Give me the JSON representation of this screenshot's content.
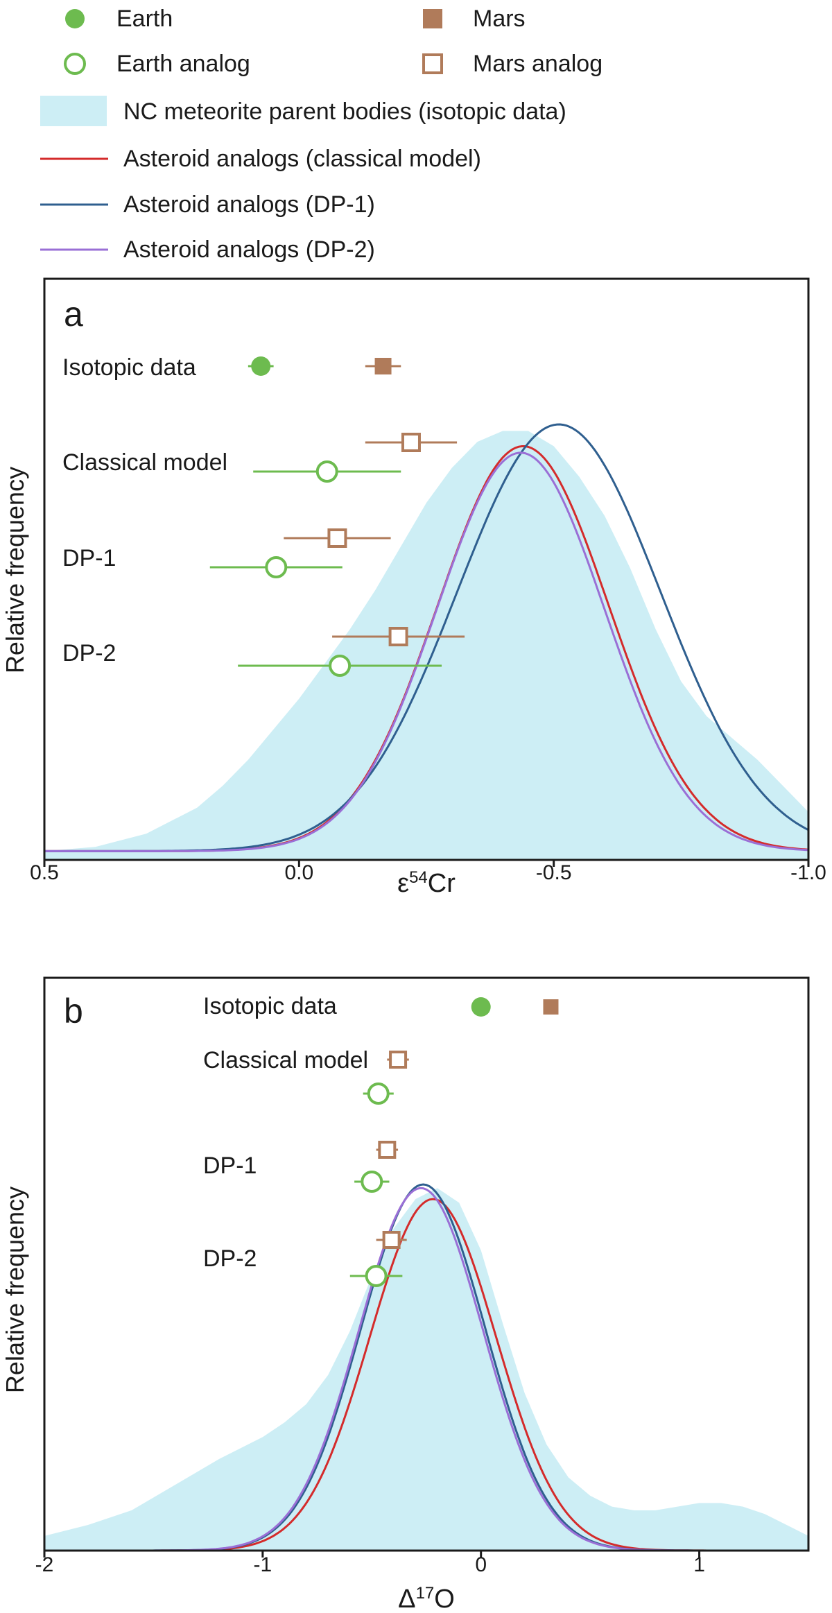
{
  "legend": {
    "items": [
      {
        "key": "earth",
        "label": "Earth",
        "symbol": "filled-circle",
        "color": "#6dbb4f"
      },
      {
        "key": "mars",
        "label": "Mars",
        "symbol": "filled-square",
        "color": "#b07b5a"
      },
      {
        "key": "earth_analog",
        "label": "Earth analog",
        "symbol": "open-circle",
        "color": "#6dbb4f"
      },
      {
        "key": "mars_analog",
        "label": "Mars analog",
        "symbol": "open-square",
        "color": "#b07b5a"
      },
      {
        "key": "nc",
        "label": "NC meteorite parent bodies (isotopic data)",
        "symbol": "filled-rect",
        "color": "#cdeef5"
      },
      {
        "key": "classical",
        "label": "Asteroid analogs (classical model)",
        "symbol": "line",
        "color": "#d42b2b"
      },
      {
        "key": "dp1",
        "label": "Asteroid analogs (DP-1)",
        "symbol": "line",
        "color": "#2f5f8f"
      },
      {
        "key": "dp2",
        "label": "Asteroid analogs (DP-2)",
        "symbol": "line",
        "color": "#9a6fd6"
      }
    ]
  },
  "chart_data": [
    {
      "panel": "a",
      "type": "area",
      "xlabel_base": "ε",
      "xlabel_sup": "54",
      "xlabel_tail": "Cr",
      "ylabel": "Relative frequency",
      "xlim": [
        0.5,
        -1.0
      ],
      "ylim": [
        0,
        1.0
      ],
      "x_ticks": [
        0.5,
        0.0,
        -0.5,
        -1.0
      ],
      "x_tick_labels": [
        "0.5",
        "0.0",
        "-0.5",
        "-1.0"
      ],
      "nc_density": {
        "x": [
          0.5,
          0.4,
          0.3,
          0.2,
          0.15,
          0.1,
          0.05,
          0.0,
          -0.05,
          -0.1,
          -0.15,
          -0.2,
          -0.25,
          -0.3,
          -0.35,
          -0.4,
          -0.45,
          -0.5,
          -0.55,
          -0.6,
          -0.65,
          -0.7,
          -0.75,
          -0.8,
          -0.85,
          -0.9,
          -0.95,
          -1.0
        ],
        "y": [
          0.02,
          0.03,
          0.06,
          0.12,
          0.17,
          0.23,
          0.3,
          0.37,
          0.45,
          0.53,
          0.62,
          0.72,
          0.82,
          0.9,
          0.96,
          0.985,
          0.985,
          0.95,
          0.88,
          0.79,
          0.67,
          0.53,
          0.41,
          0.33,
          0.28,
          0.23,
          0.17,
          0.11
        ]
      },
      "curves": [
        {
          "name": "Asteroid analogs (classical model)",
          "color": "#d42b2b",
          "mu": -0.44,
          "sigma": 0.168,
          "amp": 0.95,
          "base": 0.02
        },
        {
          "name": "Asteroid analogs (DP-1)",
          "color": "#2f5f8f",
          "mu": -0.51,
          "sigma": 0.2,
          "amp": 1.0,
          "base": 0.02
        },
        {
          "name": "Asteroid analogs (DP-2)",
          "color": "#9a6fd6",
          "mu": -0.435,
          "sigma": 0.165,
          "amp": 0.935,
          "base": 0.02
        }
      ],
      "markers": [
        {
          "row": "Isotopic data",
          "type": "earth",
          "x": 0.075,
          "err": 0.025
        },
        {
          "row": "Isotopic data",
          "type": "mars",
          "x": -0.165,
          "err": 0.035
        },
        {
          "row": "Classical model",
          "type": "mars_analog",
          "x": -0.22,
          "err": 0.09
        },
        {
          "row": "Classical model",
          "type": "earth_analog",
          "x": -0.055,
          "err": 0.145
        },
        {
          "row": "DP-1",
          "type": "mars_analog",
          "x": -0.075,
          "err": 0.105
        },
        {
          "row": "DP-1",
          "type": "earth_analog",
          "x": 0.045,
          "err": 0.13
        },
        {
          "row": "DP-2",
          "type": "mars_analog",
          "x": -0.195,
          "err": 0.13
        },
        {
          "row": "DP-2",
          "type": "earth_analog",
          "x": -0.08,
          "err": 0.2
        }
      ],
      "row_labels": [
        "Isotopic data",
        "Classical model",
        "DP-1",
        "DP-2"
      ]
    },
    {
      "panel": "b",
      "type": "area",
      "xlabel_base": "Δ",
      "xlabel_sup": "17",
      "xlabel_tail": "O",
      "ylabel": "Relative frequency",
      "xlim": [
        -2,
        1.5
      ],
      "ylim": [
        0,
        1.0
      ],
      "x_ticks": [
        -2,
        -1,
        0,
        1
      ],
      "x_tick_labels": [
        "-2",
        "-1",
        "0",
        "1"
      ],
      "nc_density": {
        "x": [
          -2.0,
          -1.8,
          -1.6,
          -1.4,
          -1.2,
          -1.0,
          -0.9,
          -0.8,
          -0.7,
          -0.6,
          -0.5,
          -0.4,
          -0.3,
          -0.2,
          -0.1,
          0.0,
          0.1,
          0.2,
          0.3,
          0.4,
          0.5,
          0.6,
          0.7,
          0.8,
          0.9,
          1.0,
          1.1,
          1.2,
          1.3,
          1.4,
          1.5
        ],
        "y": [
          0.04,
          0.07,
          0.11,
          0.18,
          0.25,
          0.31,
          0.35,
          0.4,
          0.48,
          0.6,
          0.75,
          0.88,
          0.96,
          0.99,
          0.95,
          0.82,
          0.62,
          0.43,
          0.29,
          0.2,
          0.15,
          0.12,
          0.11,
          0.11,
          0.12,
          0.13,
          0.13,
          0.12,
          0.1,
          0.07,
          0.04
        ]
      },
      "curves": [
        {
          "name": "Asteroid analogs (classical model)",
          "color": "#d42b2b",
          "mu": -0.22,
          "sigma": 0.29,
          "amp": 0.96,
          "base": 0.0
        },
        {
          "name": "Asteroid analogs (DP-1)",
          "color": "#2f5f8f",
          "mu": -0.265,
          "sigma": 0.285,
          "amp": 1.0,
          "base": 0.0
        },
        {
          "name": "Asteroid analogs (DP-2)",
          "color": "#9a6fd6",
          "mu": -0.275,
          "sigma": 0.285,
          "amp": 0.99,
          "base": 0.0
        }
      ],
      "markers": [
        {
          "row": "Isotopic data",
          "type": "earth",
          "x": 0.0,
          "err": 0.0
        },
        {
          "row": "Isotopic data",
          "type": "mars",
          "x": 0.32,
          "err": 0.0
        },
        {
          "row": "Classical model",
          "type": "mars_analog",
          "x": -0.38,
          "err": 0.05
        },
        {
          "row": "Classical model",
          "type": "earth_analog",
          "x": -0.47,
          "err": 0.07
        },
        {
          "row": "DP-1",
          "type": "mars_analog",
          "x": -0.43,
          "err": 0.05
        },
        {
          "row": "DP-1",
          "type": "earth_analog",
          "x": -0.5,
          "err": 0.08
        },
        {
          "row": "DP-2",
          "type": "mars_analog",
          "x": -0.41,
          "err": 0.07
        },
        {
          "row": "DP-2",
          "type": "earth_analog",
          "x": -0.48,
          "err": 0.12
        }
      ],
      "row_labels": [
        "Isotopic data",
        "Classical model",
        "DP-1",
        "DP-2"
      ]
    }
  ]
}
